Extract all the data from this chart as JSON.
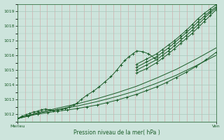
{
  "background_color": "#cde4dc",
  "plot_bg_color": "#cde4dc",
  "grid_color_h": "#a8c8bc",
  "grid_color_v": "#d4a0a0",
  "line_color": "#1a5c28",
  "ylim": [
    1011.5,
    1019.5
  ],
  "yticks": [
    1012,
    1013,
    1014,
    1015,
    1016,
    1017,
    1018,
    1019
  ],
  "xlabel": "Pression niveau de la mer( hPa )",
  "xtick_labels": [
    "Merieu",
    "Ven"
  ],
  "xtick_pos": [
    0.0,
    1.0
  ],
  "wavy_x": [
    0.0,
    0.02,
    0.04,
    0.06,
    0.08,
    0.1,
    0.12,
    0.14,
    0.16,
    0.18,
    0.2,
    0.22,
    0.24,
    0.26,
    0.28,
    0.3,
    0.32,
    0.35,
    0.38,
    0.41,
    0.44,
    0.47,
    0.5,
    0.52,
    0.54,
    0.56,
    0.58,
    0.6,
    0.63,
    0.66,
    0.69
  ],
  "wavy_y": [
    1011.7,
    1011.85,
    1011.95,
    1012.05,
    1012.15,
    1012.2,
    1012.3,
    1012.35,
    1012.3,
    1012.25,
    1012.3,
    1012.35,
    1012.4,
    1012.5,
    1012.6,
    1012.75,
    1013.0,
    1013.3,
    1013.55,
    1013.85,
    1014.2,
    1014.55,
    1015.0,
    1015.35,
    1015.65,
    1015.9,
    1016.1,
    1016.3,
    1016.25,
    1016.1,
    1015.8
  ],
  "line2_x": [
    0.0,
    0.05,
    0.1,
    0.15,
    0.2,
    0.25,
    0.3,
    0.35,
    0.4,
    0.45,
    0.5,
    0.55,
    0.6,
    0.65,
    0.7,
    0.75,
    0.8,
    0.85,
    0.9,
    0.95,
    1.0
  ],
  "line2_y": [
    1011.7,
    1011.85,
    1012.0,
    1012.1,
    1012.2,
    1012.28,
    1012.38,
    1012.5,
    1012.62,
    1012.78,
    1012.95,
    1013.15,
    1013.35,
    1013.6,
    1013.85,
    1014.15,
    1014.5,
    1014.85,
    1015.25,
    1015.7,
    1016.2
  ],
  "line3_x": [
    0.0,
    0.1,
    0.2,
    0.3,
    0.4,
    0.5,
    0.6,
    0.7,
    0.8,
    0.9,
    1.0
  ],
  "line3_y": [
    1011.7,
    1012.05,
    1012.3,
    1012.55,
    1012.85,
    1013.2,
    1013.6,
    1014.1,
    1014.65,
    1015.3,
    1016.0
  ],
  "line4_x": [
    0.0,
    0.1,
    0.2,
    0.3,
    0.4,
    0.5,
    0.6,
    0.7,
    0.8,
    0.9,
    1.0
  ],
  "line4_y": [
    1011.7,
    1012.1,
    1012.4,
    1012.7,
    1013.05,
    1013.45,
    1013.9,
    1014.45,
    1015.05,
    1015.75,
    1016.5
  ],
  "steep_x": [
    0.6,
    0.65,
    0.7,
    0.73,
    0.76,
    0.79,
    0.82,
    0.85,
    0.88,
    0.91,
    0.94,
    0.97,
    1.0
  ],
  "steep1_y": [
    1014.8,
    1015.1,
    1015.5,
    1015.8,
    1016.1,
    1016.45,
    1016.8,
    1017.15,
    1017.5,
    1017.9,
    1018.3,
    1018.7,
    1019.1
  ],
  "steep2_y": [
    1015.0,
    1015.35,
    1015.7,
    1016.0,
    1016.3,
    1016.65,
    1017.0,
    1017.35,
    1017.7,
    1018.1,
    1018.5,
    1018.9,
    1019.2
  ],
  "steep3_y": [
    1015.2,
    1015.55,
    1015.9,
    1016.2,
    1016.5,
    1016.85,
    1017.2,
    1017.55,
    1017.9,
    1018.3,
    1018.65,
    1019.0,
    1019.3
  ],
  "steep4_y": [
    1015.4,
    1015.75,
    1016.1,
    1016.4,
    1016.7,
    1017.0,
    1017.35,
    1017.7,
    1018.1,
    1018.5,
    1018.85,
    1019.15,
    1019.45
  ]
}
